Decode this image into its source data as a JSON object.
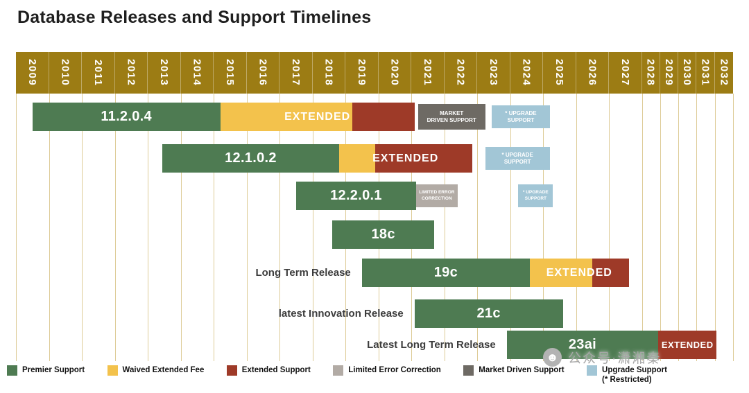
{
  "title": "Database Releases and Support Timelines",
  "watermark": {
    "icon": "face-logo-icon",
    "text": "公众号·潇湘秦"
  },
  "chart_data": {
    "type": "gantt-timeline",
    "title": "Database Releases and Support Timelines",
    "x_axis": {
      "start": 2009,
      "end": 2033,
      "narrow_from": 2028,
      "ticks": [
        "2009",
        "2010",
        "2011",
        "2012",
        "2013",
        "2014",
        "2015",
        "2016",
        "2017",
        "2018",
        "2019",
        "2020",
        "2021",
        "2022",
        "2023",
        "2024",
        "2025",
        "2026",
        "2027",
        "2028",
        "2029",
        "2030",
        "2031",
        "2032"
      ]
    },
    "colors": {
      "header_bg": "#9c7c14",
      "gridline": "#ddcb96",
      "title_text": "#1f1f1f",
      "row_label_text": "#3c3c3c",
      "legend_text": "#111111",
      "watermark_text": "#a6a6a6"
    },
    "legend": [
      {
        "key": "premier",
        "label": "Premier Support",
        "color": "#4e7b52"
      },
      {
        "key": "waived",
        "label": "Waived Extended Fee",
        "color": "#f3c24c"
      },
      {
        "key": "extended",
        "label": "Extended Support",
        "color": "#9e3a28"
      },
      {
        "key": "limited",
        "label": "Limited Error Correction",
        "color": "#b2aba5"
      },
      {
        "key": "market",
        "label": "Market Driven Support",
        "color": "#6e6a64"
      },
      {
        "key": "upgrade",
        "label": "Upgrade Support\n(* Restricted)",
        "color": "#a2c6d6"
      }
    ],
    "rows": [
      {
        "name": "11.2.0.4",
        "segments": [
          {
            "type": "premier",
            "start": 2009.5,
            "end": 2015.2,
            "text": "11.2.0.4",
            "text_class": "version"
          },
          {
            "type": "waived",
            "start": 2015.2,
            "end": 2019.2
          },
          {
            "type": "extended",
            "start": 2019.2,
            "end": 2021.1
          },
          {
            "type": "market",
            "start": 2021.2,
            "end": 2023.25,
            "text": "MARKET\nDRIVEN SUPPORT",
            "text_class": "tiny"
          },
          {
            "type": "upgrade",
            "start": 2023.45,
            "end": 2025.2,
            "text": "* UPGRADE\nSUPPORT",
            "text_class": "tiny"
          }
        ],
        "overlay": {
          "text": "EXTENDED",
          "start": 2015.2,
          "end": 2021.1
        }
      },
      {
        "name": "12.1.0.2",
        "segments": [
          {
            "type": "premier",
            "start": 2013.45,
            "end": 2018.8,
            "text": "12.1.0.2",
            "text_class": "version"
          },
          {
            "type": "waived",
            "start": 2018.8,
            "end": 2019.9
          },
          {
            "type": "extended",
            "start": 2019.9,
            "end": 2022.85
          },
          {
            "type": "upgrade",
            "start": 2023.25,
            "end": 2025.2,
            "text": "* UPGRADE\nSUPPORT",
            "text_class": "tiny"
          }
        ],
        "overlay": {
          "text": "EXTENDED",
          "start": 2018.8,
          "end": 2022.85
        }
      },
      {
        "name": "12.2.0.1",
        "segments": [
          {
            "type": "premier",
            "start": 2017.5,
            "end": 2021.15,
            "text": "12.2.0.1",
            "text_class": "version"
          },
          {
            "type": "limited",
            "start": 2021.15,
            "end": 2022.4,
            "text": "LIMITED ERROR\nCORRECTION",
            "text_class": "micro"
          },
          {
            "type": "upgrade",
            "start": 2024.25,
            "end": 2025.3,
            "text": "* UPGRADE\nSUPPORT",
            "text_class": "micro"
          }
        ]
      },
      {
        "name": "18c",
        "segments": [
          {
            "type": "premier",
            "start": 2018.6,
            "end": 2021.7,
            "text": "18c",
            "text_class": "version"
          }
        ]
      },
      {
        "name": "19c",
        "row_label": "Long Term Release",
        "segments": [
          {
            "type": "premier",
            "start": 2019.5,
            "end": 2024.6,
            "text": "19c",
            "text_class": "version"
          },
          {
            "type": "waived",
            "start": 2024.6,
            "end": 2026.5
          },
          {
            "type": "extended",
            "start": 2026.5,
            "end": 2027.6
          }
        ],
        "overlay": {
          "text": "EXTENDED",
          "start": 2024.6,
          "end": 2027.6
        }
      },
      {
        "name": "21c",
        "row_label": "latest Innovation Release",
        "segments": [
          {
            "type": "premier",
            "start": 2021.1,
            "end": 2025.6,
            "text": "21c",
            "text_class": "version"
          }
        ]
      },
      {
        "name": "23ai",
        "row_label": "Latest Long Term Release",
        "segments": [
          {
            "type": "premier",
            "start": 2023.9,
            "end": 2028.9,
            "text": "23ai",
            "text_class": "version"
          },
          {
            "type": "extended",
            "start": 2028.9,
            "end": 2032.1,
            "text": "EXTENDED",
            "text_class": "mid"
          }
        ]
      }
    ]
  }
}
